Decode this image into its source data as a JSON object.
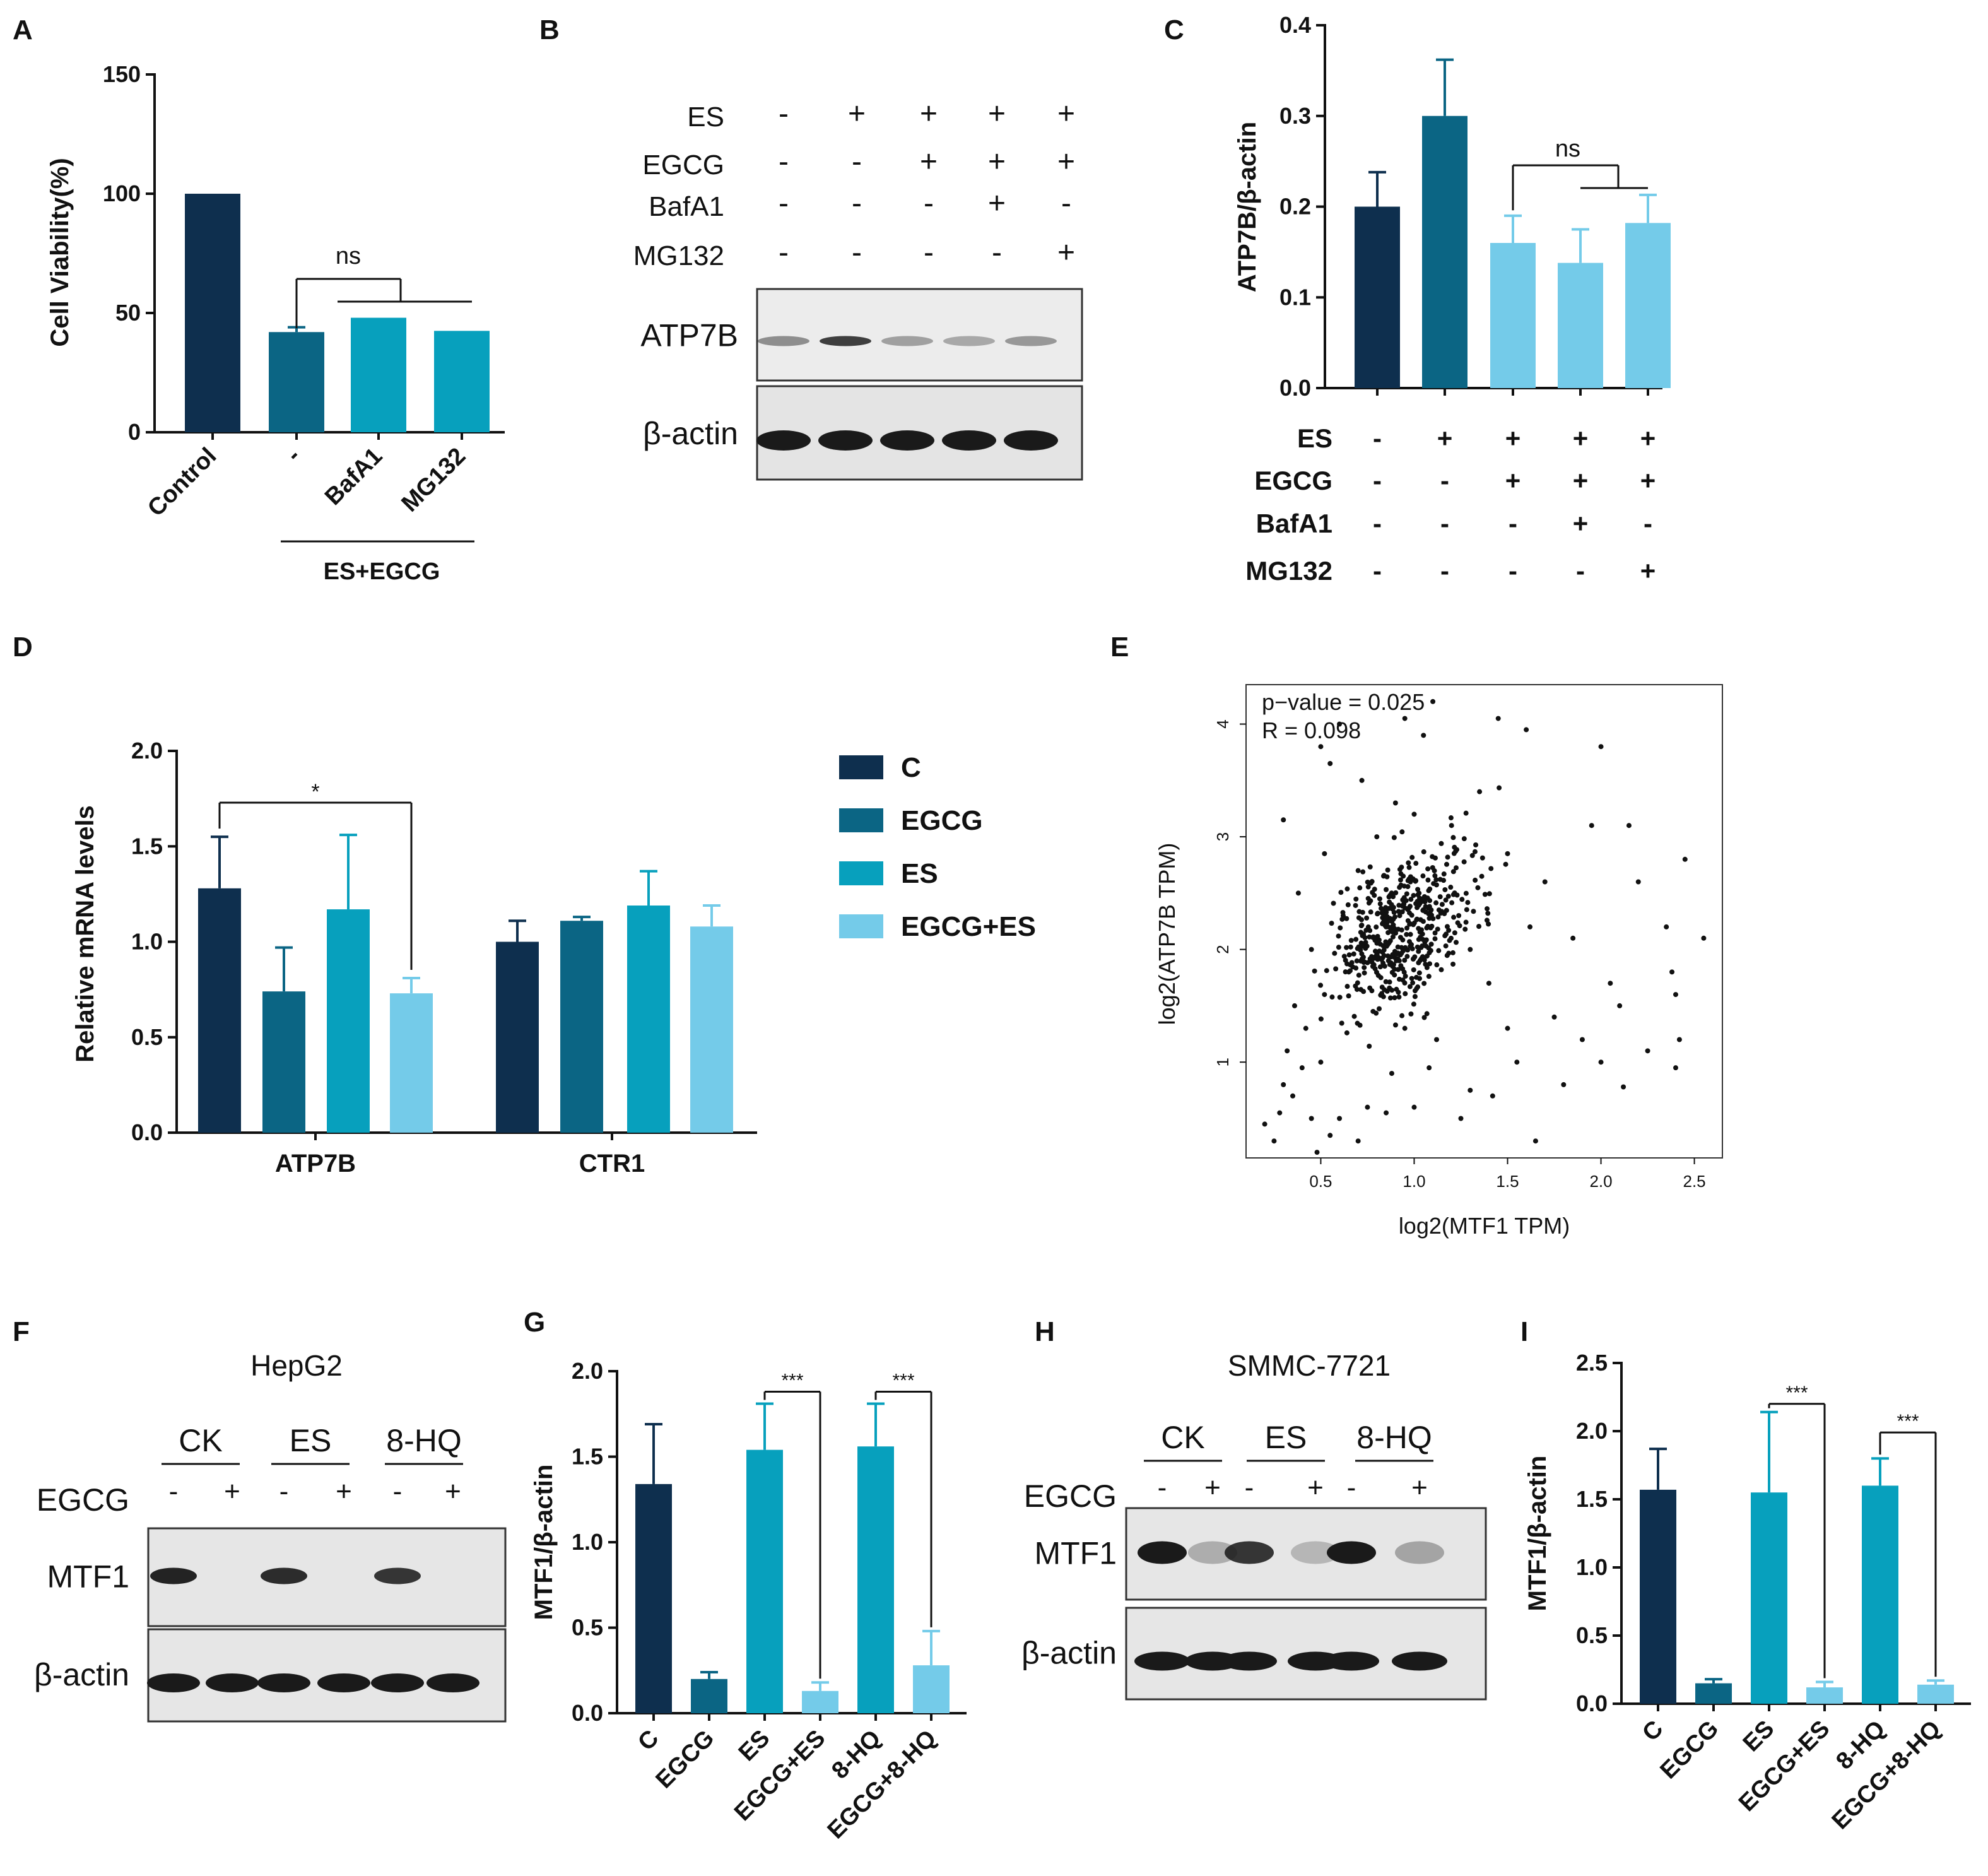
{
  "colors": {
    "c1": "#0e2f4e",
    "c2": "#0b6584",
    "c3": "#07a0bd",
    "c4": "#74cbe9",
    "axis": "#111111",
    "point": "#111111",
    "blot_bg": "#e6e6e6",
    "band": "#1a1a1a"
  },
  "panel_labels": {
    "A": "A",
    "B": "B",
    "C": "C",
    "D": "D",
    "E": "E",
    "F": "F",
    "G": "G",
    "H": "H",
    "I": "I"
  },
  "chart_data": [
    {
      "id": "A",
      "type": "bar",
      "xlabel": "",
      "ylabel": "Cell Viability(%)",
      "ylim": [
        0,
        150
      ],
      "yticks": [
        0,
        50,
        100,
        150
      ],
      "categories": [
        "Control",
        "-",
        "BafA1",
        "MG132"
      ],
      "values": [
        100,
        42,
        48,
        42.5
      ],
      "errors": [
        0,
        2,
        0.5,
        0.5
      ],
      "colors": [
        "c1",
        "c2",
        "c3",
        "c3"
      ],
      "group_label": "ES+EGCG",
      "annotations": [
        {
          "text": "ns"
        }
      ]
    },
    {
      "id": "C",
      "type": "bar",
      "xlabel": "",
      "ylabel": "ATP7B/β-actin",
      "ylim": [
        0,
        0.4
      ],
      "yticks": [
        "0.0",
        "0.1",
        "0.2",
        "0.3",
        "0.4"
      ],
      "values": [
        0.2,
        0.3,
        0.16,
        0.138,
        0.182
      ],
      "errors": [
        0.038,
        0.062,
        0.03,
        0.037,
        0.031
      ],
      "colors": [
        "c1",
        "c2",
        "c4",
        "c4",
        "c4"
      ],
      "annotations": [
        {
          "text": "ns"
        }
      ],
      "condition_table": {
        "rows": [
          "ES",
          "EGCG",
          "BafA1",
          "MG132"
        ],
        "signs": [
          [
            "-",
            "+",
            "+",
            "+",
            "+"
          ],
          [
            "-",
            "-",
            "+",
            "+",
            "+"
          ],
          [
            "-",
            "-",
            "-",
            "+",
            "-"
          ],
          [
            "-",
            "-",
            "-",
            "-",
            "+"
          ]
        ]
      }
    },
    {
      "id": "D",
      "type": "bar",
      "xlabel": "",
      "ylabel": "Relative mRNA levels",
      "ylim": [
        0,
        2.0
      ],
      "yticks": [
        "0.0",
        "0.5",
        "1.0",
        "1.5",
        "2.0"
      ],
      "categories": [
        "ATP7B",
        "CTR1"
      ],
      "series": [
        {
          "name": "C",
          "values": [
            1.28,
            1.0
          ],
          "errors": [
            0.27,
            0.11
          ],
          "color": "c1"
        },
        {
          "name": "EGCG",
          "values": [
            0.74,
            1.11
          ],
          "errors": [
            0.23,
            0.02
          ],
          "color": "c2"
        },
        {
          "name": "ES",
          "values": [
            1.17,
            1.19
          ],
          "errors": [
            0.39,
            0.18
          ],
          "color": "c3"
        },
        {
          "name": "EGCG+ES",
          "values": [
            0.73,
            1.08
          ],
          "errors": [
            0.08,
            0.11
          ],
          "color": "c4"
        }
      ],
      "legend_position": "right",
      "annotations": [
        {
          "text": "*"
        }
      ]
    },
    {
      "id": "E",
      "type": "scatter",
      "xlabel": "log2(MTF1 TPM)",
      "ylabel": "log2(ATP7B TPM)",
      "xlim": [
        0.1,
        2.65
      ],
      "ylim": [
        0.15,
        4.35
      ],
      "xticks": [
        "0.5",
        "1.0",
        "1.5",
        "2.0",
        "2.5"
      ],
      "yticks": [
        "1",
        "2",
        "3",
        "4"
      ],
      "n_points": 560,
      "annotations": [
        "p−value = 0.025",
        "R = 0.098"
      ],
      "points": [
        [
          0.2,
          0.45
        ],
        [
          0.25,
          0.3
        ],
        [
          0.28,
          0.55
        ],
        [
          0.3,
          0.8
        ],
        [
          0.32,
          1.1
        ],
        [
          0.35,
          0.7
        ],
        [
          0.4,
          0.95
        ],
        [
          0.42,
          1.3
        ],
        [
          0.45,
          0.5
        ],
        [
          0.48,
          0.2
        ],
        [
          0.5,
          1.0
        ],
        [
          0.52,
          1.6
        ],
        [
          0.55,
          0.35
        ],
        [
          0.3,
          3.15
        ],
        [
          0.5,
          3.8
        ],
        [
          0.55,
          3.65
        ],
        [
          0.52,
          2.85
        ],
        [
          0.45,
          2.0
        ],
        [
          0.38,
          2.5
        ],
        [
          0.36,
          1.5
        ],
        [
          0.6,
          4.0
        ],
        [
          0.62,
          2.3
        ],
        [
          0.65,
          1.8
        ],
        [
          0.7,
          2.7
        ],
        [
          0.72,
          3.5
        ],
        [
          0.75,
          0.6
        ],
        [
          0.78,
          1.45
        ],
        [
          0.8,
          3.0
        ],
        [
          0.85,
          2.2
        ],
        [
          0.88,
          0.9
        ],
        [
          0.9,
          3.3
        ],
        [
          0.92,
          1.9
        ],
        [
          0.95,
          4.05
        ],
        [
          0.98,
          2.6
        ],
        [
          1.0,
          3.2
        ],
        [
          1.05,
          3.9
        ],
        [
          1.1,
          4.2
        ],
        [
          1.12,
          1.2
        ],
        [
          1.15,
          2.4
        ],
        [
          1.2,
          3.1
        ],
        [
          1.25,
          0.5
        ],
        [
          1.3,
          2.0
        ],
        [
          1.35,
          3.4
        ],
        [
          1.4,
          1.7
        ],
        [
          1.45,
          4.05
        ],
        [
          1.5,
          2.85
        ],
        [
          1.55,
          1.0
        ],
        [
          1.6,
          3.95
        ],
        [
          1.62,
          2.2
        ],
        [
          1.65,
          0.3
        ],
        [
          1.7,
          2.6
        ],
        [
          1.75,
          1.4
        ],
        [
          1.8,
          0.8
        ],
        [
          1.85,
          2.1
        ],
        [
          1.9,
          1.2
        ],
        [
          1.95,
          3.1
        ],
        [
          2.0,
          3.8
        ],
        [
          2.05,
          1.7
        ],
        [
          2.1,
          1.5
        ],
        [
          2.15,
          3.1
        ],
        [
          2.2,
          2.6
        ],
        [
          2.25,
          1.1
        ],
        [
          2.35,
          2.2
        ],
        [
          2.38,
          1.8
        ],
        [
          2.4,
          1.6
        ],
        [
          2.42,
          1.2
        ],
        [
          2.45,
          2.8
        ],
        [
          2.55,
          2.1
        ],
        [
          2.4,
          0.95
        ],
        [
          2.12,
          0.78
        ],
        [
          2.0,
          1.0
        ],
        [
          1.3,
          0.75
        ],
        [
          1.42,
          0.7
        ],
        [
          1.5,
          1.3
        ],
        [
          1.0,
          0.6
        ],
        [
          0.85,
          0.55
        ],
        [
          0.7,
          0.3
        ],
        [
          0.6,
          0.5
        ],
        [
          0.95,
          1.3
        ],
        [
          1.08,
          0.95
        ]
      ]
    },
    {
      "id": "G",
      "type": "bar",
      "xlabel": "",
      "ylabel": "MTF1/β-actin",
      "ylim": [
        0,
        2.0
      ],
      "yticks": [
        "0.0",
        "0.5",
        "1.0",
        "1.5",
        "2.0"
      ],
      "categories": [
        "C",
        "EGCG",
        "ES",
        "EGCG+ES",
        "8-HQ",
        "EGCG+8-HQ"
      ],
      "values": [
        1.34,
        0.2,
        1.54,
        0.13,
        1.56,
        0.28
      ],
      "errors": [
        0.35,
        0.04,
        0.27,
        0.05,
        0.25,
        0.2
      ],
      "colors": [
        "c1",
        "c2",
        "c3",
        "c4",
        "c3",
        "c4"
      ],
      "annotations": [
        {
          "text": "***"
        },
        {
          "text": "***"
        }
      ]
    },
    {
      "id": "I",
      "type": "bar",
      "xlabel": "",
      "ylabel": "MTF1/β-actin",
      "ylim": [
        0,
        2.5
      ],
      "yticks": [
        "0.0",
        "0.5",
        "1.0",
        "1.5",
        "2.0",
        "2.5"
      ],
      "categories": [
        "C",
        "EGCG",
        "ES",
        "EGCG+ES",
        "8-HQ",
        "EGCG+8-HQ"
      ],
      "values": [
        1.57,
        0.15,
        1.55,
        0.12,
        1.6,
        0.14
      ],
      "errors": [
        0.3,
        0.03,
        0.59,
        0.04,
        0.2,
        0.03
      ],
      "colors": [
        "c1",
        "c2",
        "c3",
        "c4",
        "c3",
        "c4"
      ],
      "annotations": [
        {
          "text": "***"
        },
        {
          "text": "***"
        }
      ]
    }
  ],
  "blots": {
    "B": {
      "conditions": [
        {
          "name": "ES",
          "signs": [
            "-",
            "+",
            "+",
            "+",
            "+"
          ]
        },
        {
          "name": "EGCG",
          "signs": [
            "-",
            "-",
            "+",
            "+",
            "+"
          ]
        },
        {
          "name": "BafA1",
          "signs": [
            "-",
            "-",
            "-",
            "+",
            "-"
          ]
        },
        {
          "name": "MG132",
          "signs": [
            "-",
            "-",
            "-",
            "-",
            "+"
          ]
        }
      ],
      "rows": [
        {
          "label": "ATP7B",
          "intensity": [
            0.35,
            0.8,
            0.25,
            0.2,
            0.3
          ]
        },
        {
          "label": "β-actin",
          "intensity": [
            1,
            1,
            1,
            1,
            1
          ]
        }
      ]
    },
    "F": {
      "cell_line": "HepG2",
      "groups": [
        "CK",
        "ES",
        "8-HQ"
      ],
      "treatment": "EGCG",
      "signs": [
        "-",
        "+",
        "-",
        "+",
        "-",
        "+"
      ],
      "rows": [
        {
          "label": "MTF1",
          "intensity": [
            0.95,
            0,
            0.9,
            0,
            0.85,
            0
          ]
        },
        {
          "label": "β-actin",
          "intensity": [
            1,
            1,
            1,
            1,
            1,
            1
          ]
        }
      ]
    },
    "H": {
      "cell_line": "SMMC-7721",
      "groups": [
        "CK",
        "ES",
        "8-HQ"
      ],
      "treatment": "EGCG",
      "signs": [
        "-",
        "+",
        "-",
        "+",
        "-",
        "+"
      ],
      "rows": [
        {
          "label": "MTF1",
          "intensity": [
            1,
            0.15,
            0.85,
            0.1,
            1,
            0.2
          ]
        },
        {
          "label": "β-actin",
          "intensity": [
            1,
            1,
            1,
            1,
            1,
            1
          ]
        }
      ]
    }
  }
}
